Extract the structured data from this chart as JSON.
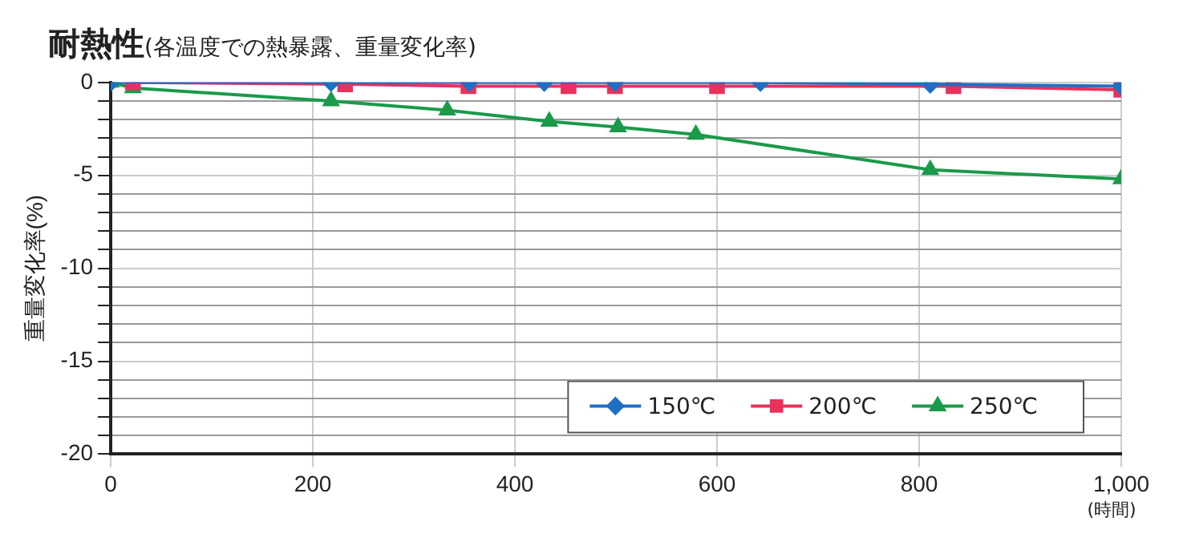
{
  "chart_data": {
    "type": "line",
    "title": "耐熱性",
    "subtitle": "(各温度での熱暴露、重量変化率)",
    "xlabel": "(時間)",
    "ylabel": "重量変化率(%)",
    "xlim": [
      0,
      1000
    ],
    "xticks": [
      0,
      200,
      400,
      600,
      800,
      {
        "value": 1000,
        "label": "1,000"
      }
    ],
    "ylim": [
      -20,
      0
    ],
    "yticks": [
      -20,
      {
        "value": -19,
        "label": null
      },
      {
        "value": -18,
        "label": null
      },
      {
        "value": -17,
        "label": null
      },
      {
        "value": -16,
        "label": null
      },
      -15,
      {
        "value": -14,
        "label": null
      },
      {
        "value": -13,
        "label": null
      },
      {
        "value": -12,
        "label": null
      },
      {
        "value": -11,
        "label": null
      },
      -10,
      {
        "value": -9,
        "label": null
      },
      {
        "value": -8,
        "label": null
      },
      {
        "value": -7,
        "label": null
      },
      {
        "value": -6,
        "label": null
      },
      -5,
      {
        "value": -4,
        "label": null
      },
      {
        "value": -3,
        "label": null
      },
      {
        "value": -2,
        "label": null
      },
      {
        "value": -1,
        "label": null
      },
      0
    ],
    "grid": true,
    "legend": "bottom right",
    "line_style": "solid",
    "series": [
      {
        "name": "150℃",
        "color": "#1f6fc4",
        "marker": "diamond",
        "x": [
          0,
          218,
          355,
          429,
          499,
          643,
          811,
          1000
        ],
        "values": [
          0,
          0,
          0,
          0,
          0,
          0,
          -0.1,
          -0.2
        ]
      },
      {
        "name": "200℃",
        "color": "#e8325a",
        "marker": "square",
        "x": [
          22,
          232,
          354,
          453,
          499,
          600,
          834,
          1000
        ],
        "values": [
          0,
          -0.1,
          -0.2,
          -0.2,
          -0.2,
          -0.2,
          -0.2,
          -0.4
        ]
      },
      {
        "name": "250℃",
        "color": "#1a9a4a",
        "marker": "triangle",
        "x": [
          0,
          22,
          218,
          333,
          434,
          502,
          579,
          811,
          1000
        ],
        "values": [
          0,
          -0.3,
          -1.0,
          -1.5,
          -2.1,
          -2.4,
          -2.8,
          -4.7,
          -5.2
        ]
      }
    ]
  }
}
